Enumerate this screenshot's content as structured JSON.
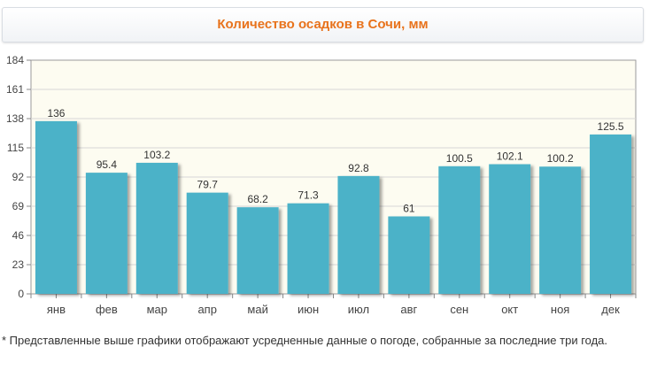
{
  "chart_data": {
    "type": "bar",
    "title": "Количество осадков в Сочи, мм",
    "xlabel": "",
    "ylabel": "",
    "categories": [
      "янв",
      "фев",
      "мар",
      "апр",
      "май",
      "июн",
      "июл",
      "авг",
      "сен",
      "окт",
      "ноя",
      "дек"
    ],
    "values": [
      136,
      95.4,
      103.2,
      79.7,
      68.2,
      71.3,
      92.8,
      61,
      100.5,
      102.1,
      100.2,
      125.5
    ],
    "value_labels": [
      "136",
      "95.4",
      "103.2",
      "79.7",
      "68.2",
      "71.3",
      "92.8",
      "61",
      "100.5",
      "102.1",
      "100.2",
      "125.5"
    ],
    "y_ticks": [
      0,
      23,
      46,
      69,
      92,
      115,
      138,
      161,
      184
    ],
    "ylim": [
      0,
      184
    ],
    "grid": true,
    "colors": {
      "bar": "#4cb2c8",
      "plot_background": "#fdfcf1",
      "title": "#e8731c",
      "grid": "#d6d6d6"
    }
  },
  "footnote": "* Представленные выше графики отображают усредненные данные о погоде, собранные за последние три года."
}
